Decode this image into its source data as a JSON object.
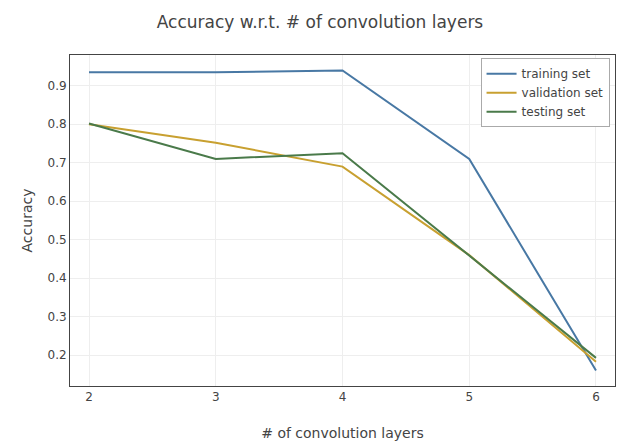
{
  "chart_data": {
    "type": "line",
    "title": "Accuracy w.r.t. # of convolution layers",
    "xlabel": "# of convolution layers",
    "ylabel": "Accuracy",
    "x": [
      2,
      3,
      4,
      5,
      6
    ],
    "series": [
      {
        "name": "training set",
        "color": "#4878a4",
        "values": [
          0.935,
          0.935,
          0.94,
          0.71,
          0.16
        ]
      },
      {
        "name": "validation set",
        "color": "#c8a030",
        "values": [
          0.8,
          0.752,
          0.69,
          0.46,
          0.183
        ]
      },
      {
        "name": "testing set",
        "color": "#4a7a4a",
        "values": [
          0.802,
          0.71,
          0.725,
          0.46,
          0.193
        ]
      }
    ],
    "xlim": [
      1.85,
      6.15
    ],
    "ylim": [
      0.12,
      0.98
    ],
    "xticks": [
      2,
      3,
      4,
      5,
      6
    ],
    "yticks": [
      0.2,
      0.3,
      0.4,
      0.5,
      0.6,
      0.7,
      0.8,
      0.9
    ],
    "grid": true,
    "legend": "upper right"
  }
}
